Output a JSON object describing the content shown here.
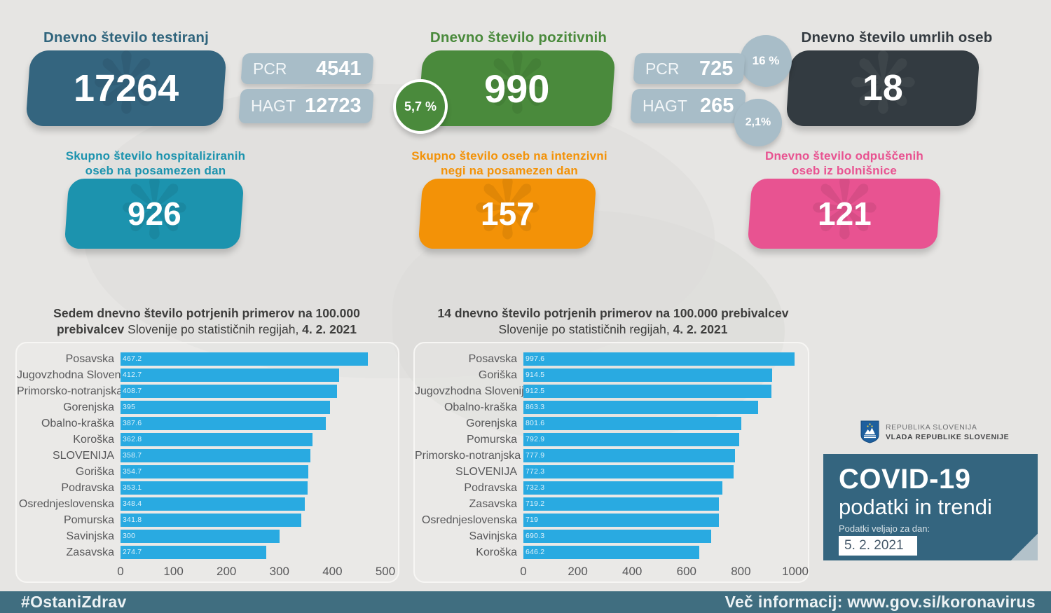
{
  "header": {
    "tests": {
      "title": "Dnevno število testiranj",
      "value": "17264",
      "pcr_label": "PCR",
      "pcr_value": "4541",
      "hagt_label": "HAGT",
      "hagt_value": "12723"
    },
    "positive": {
      "title": "Dnevno število pozitivnih",
      "value": "990",
      "share": "5,7 %",
      "pcr_label": "PCR",
      "pcr_value": "725",
      "pcr_share": "16 %",
      "hagt_label": "HAGT",
      "hagt_value": "265",
      "hagt_share": "2,1%"
    },
    "deaths": {
      "title": "Dnevno število umrlih oseb",
      "value": "18"
    }
  },
  "row2": {
    "hospitalized": {
      "title_line1": "Skupno število hospitaliziranih",
      "title_line2": "oseb na posamezen dan",
      "value": "926"
    },
    "icu": {
      "title_line1": "Skupno število oseb na intenzivni",
      "title_line2": "negi na posamezen dan",
      "value": "157"
    },
    "discharged": {
      "title_line1": "Dnevno število odpuščenih",
      "title_line2": "oseb iz bolnišnice",
      "value": "121"
    }
  },
  "chart_data": [
    {
      "type": "bar",
      "orientation": "horizontal",
      "title_bold": "Sedem dnevno število potrjenih primerov na 100.000 prebivalcev ",
      "title_normal": "Slovenije po statističnih regijah, ",
      "title_date": "4. 2. 2021",
      "categories": [
        "Posavska",
        "Jugovzhodna Slovenija",
        "Primorsko-notranjska",
        "Gorenjska",
        "Obalno-kraška",
        "Koroška",
        "SLOVENIJA",
        "Goriška",
        "Podravska",
        "Osrednjeslovenska",
        "Pomurska",
        "Savinjska",
        "Zasavska"
      ],
      "values": [
        467.2,
        412.7,
        408.7,
        395,
        387.6,
        362.8,
        358.7,
        354.7,
        353.1,
        348.4,
        341.8,
        300,
        274.7
      ],
      "labels": [
        "467.2",
        "412.7",
        "408.7",
        "395",
        "387.6",
        "362.8",
        "358.7",
        "354.7",
        "353.1",
        "348.4",
        "341.8",
        "300",
        "274.7"
      ],
      "xlim": [
        0,
        500
      ],
      "xticks": [
        0,
        100,
        200,
        300,
        400,
        500
      ],
      "bar_color": "#29aae1",
      "grid": false,
      "legend": false
    },
    {
      "type": "bar",
      "orientation": "horizontal",
      "title_bold": "14 dnevno število potrjenih primerov na 100.000 prebivalcev ",
      "title_normal": "Slovenije po statističnih regijah, ",
      "title_date": "4. 2. 2021",
      "categories": [
        "Posavska",
        "Goriška",
        "Jugovzhodna Slovenija",
        "Obalno-kraška",
        "Gorenjska",
        "Pomurska",
        "Primorsko-notranjska",
        "SLOVENIJA",
        "Podravska",
        "Zasavska",
        "Osrednjeslovenska",
        "Savinjska",
        "Koroška"
      ],
      "values": [
        997.6,
        914.5,
        912.5,
        863.3,
        801.6,
        792.9,
        777.9,
        772.3,
        732.3,
        719.2,
        719,
        690.3,
        646.2
      ],
      "labels": [
        "997.6",
        "914.5",
        "912.5",
        "863.3",
        "801.6",
        "792.9",
        "777.9",
        "772.3",
        "732.3",
        "719.2",
        "719",
        "690.3",
        "646.2"
      ],
      "xlim": [
        0,
        1000
      ],
      "xticks": [
        0,
        200,
        400,
        600,
        800,
        1000
      ],
      "bar_color": "#29aae1",
      "grid": false,
      "legend": false
    }
  ],
  "branding": {
    "gov_line1": "REPUBLIKA SLOVENIJA",
    "gov_line2": "VLADA REPUBLIKE SLOVENIJE",
    "covid_title": "COVID-19",
    "covid_subtitle": "podatki in trendi",
    "date_label": "Podatki veljajo za dan:",
    "date_value": "5. 2. 2021"
  },
  "footer": {
    "hashtag": "#OstaniZdrav",
    "info": "Več informacij: www.gov.si/koronavirus"
  },
  "colors": {
    "slate_blue": "#34657f",
    "gray_blue": "#a8bdc8",
    "green": "#4a8a3c",
    "dark": "#333b41",
    "teal": "#1c93ae",
    "orange": "#f39207",
    "pink": "#e85391",
    "bar_blue": "#29aae1",
    "footer_bg": "#406e80",
    "page_bg": "#e6e5e3"
  }
}
